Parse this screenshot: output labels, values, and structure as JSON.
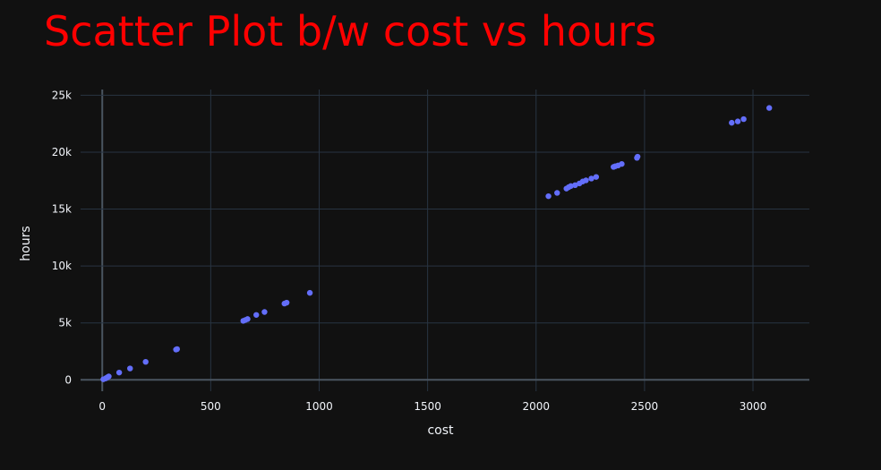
{
  "chart_data": {
    "type": "scatter",
    "title": "Scatter Plot b/w cost vs hours",
    "xlabel": "cost",
    "ylabel": "hours",
    "xlim": [
      -100,
      3260
    ],
    "ylim": [
      -1000,
      25500
    ],
    "xticks": [
      0,
      500,
      1000,
      1500,
      2000,
      2500,
      3000
    ],
    "xtick_labels": [
      "0",
      "500",
      "1000",
      "1500",
      "2000",
      "2500",
      "3000"
    ],
    "yticks": [
      0,
      5000,
      10000,
      15000,
      20000,
      25000
    ],
    "ytick_labels": [
      "0",
      "5k",
      "10k",
      "15k",
      "20k",
      "25k"
    ],
    "grid": true,
    "series": [
      {
        "x": [
          5,
          15,
          20,
          25,
          30,
          78,
          128,
          200,
          340,
          345,
          650,
          660,
          670,
          710,
          748,
          840,
          850,
          957,
          2057,
          2097,
          2140,
          2150,
          2160,
          2180,
          2200,
          2215,
          2230,
          2255,
          2277,
          2357,
          2365,
          2378,
          2395,
          2465,
          2468,
          2902,
          2930,
          2957,
          3075
        ],
        "y": [
          50,
          120,
          180,
          240,
          300,
          640,
          1000,
          1580,
          2660,
          2700,
          5180,
          5260,
          5340,
          5700,
          5960,
          6700,
          6780,
          7640,
          16130,
          16420,
          16800,
          16920,
          17020,
          17100,
          17250,
          17420,
          17520,
          17680,
          17820,
          18700,
          18760,
          18830,
          18960,
          19500,
          19600,
          22580,
          22700,
          22900,
          23880
        ]
      }
    ]
  },
  "colors": {
    "background": "#111111",
    "plot_background": "#111111",
    "grid": "#283442",
    "zeroline": "#4a5560",
    "marker": "#636efa",
    "title": "#ff0000",
    "text": "#f2f5fa"
  }
}
